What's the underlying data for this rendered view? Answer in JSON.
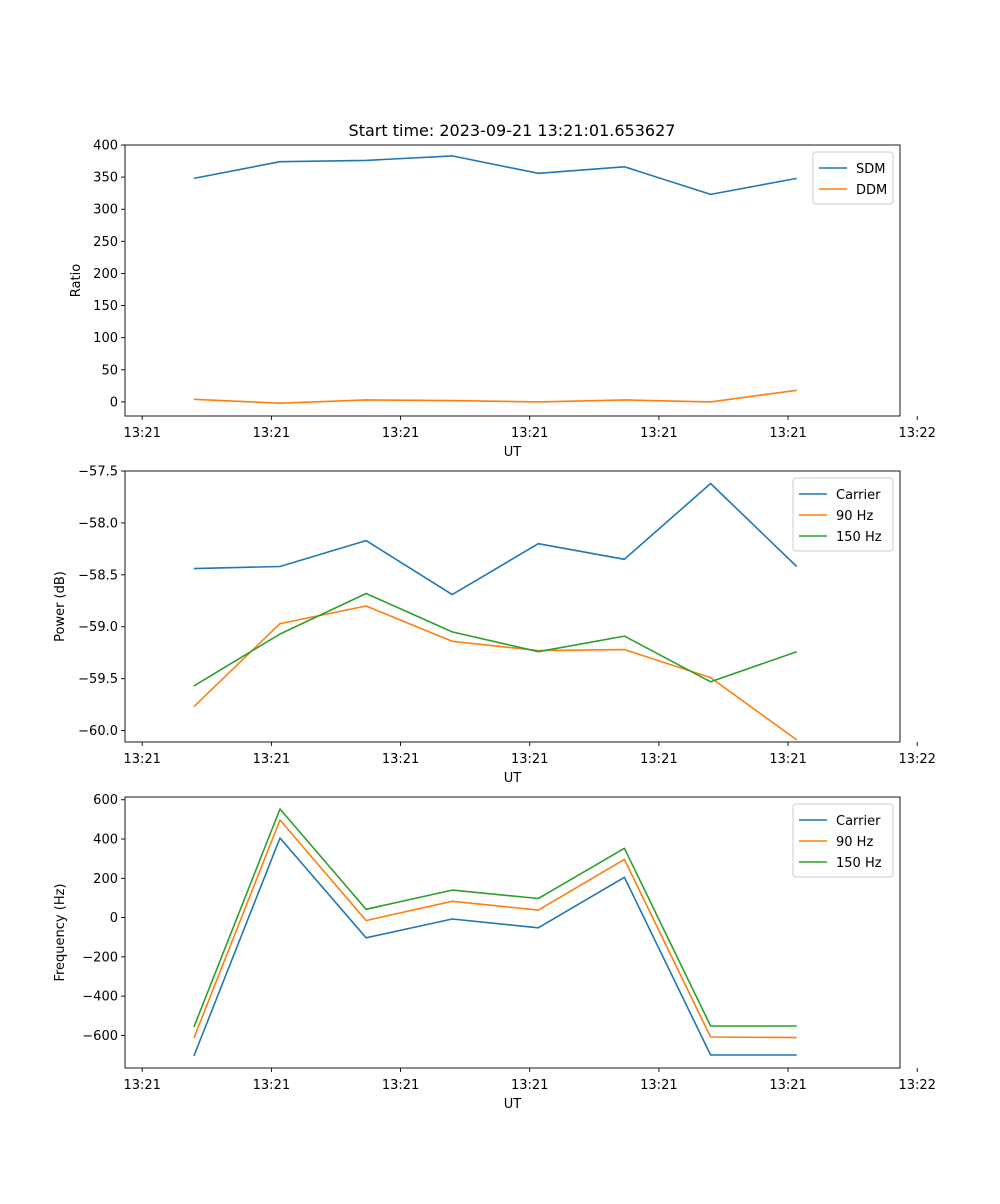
{
  "figure_title": "Start time: 2023-09-21 13:21:01.653627",
  "colors": {
    "c0": "#1f77b4",
    "c1": "#ff7f0e",
    "c2": "#2ca02c"
  },
  "chart_data": [
    {
      "type": "line",
      "title": "Start time: 2023-09-21 13:21:01.653627",
      "xlabel": "UT",
      "ylabel": "Ratio",
      "x": [
        1,
        2,
        3,
        4,
        5,
        6,
        7,
        8
      ],
      "xlim": [
        0.2,
        9.2
      ],
      "xticks": [
        0.4,
        1.9,
        3.4,
        4.9,
        6.4,
        7.9,
        9.4
      ],
      "xtick_labels": [
        "13:21",
        "13:21",
        "13:21",
        "13:21",
        "13:21",
        "13:21",
        "13:22"
      ],
      "ylim": [
        -22,
        400
      ],
      "yticks": [
        0,
        50,
        100,
        150,
        200,
        250,
        300,
        350,
        400
      ],
      "ytick_labels": [
        "0",
        "50",
        "100",
        "150",
        "200",
        "250",
        "300",
        "350",
        "400"
      ],
      "legend_position": "top-right",
      "series": [
        {
          "name": "SDM",
          "color": "#1f77b4",
          "values": [
            348,
            374,
            376,
            383,
            356,
            366,
            323,
            348
          ]
        },
        {
          "name": "DDM",
          "color": "#ff7f0e",
          "values": [
            4,
            -2,
            3,
            2,
            0,
            3,
            0,
            18
          ]
        }
      ]
    },
    {
      "type": "line",
      "xlabel": "UT",
      "ylabel": "Power (dB)",
      "x": [
        1,
        2,
        3,
        4,
        5,
        6,
        7,
        8
      ],
      "xlim": [
        0.2,
        9.2
      ],
      "xticks": [
        0.4,
        1.9,
        3.4,
        4.9,
        6.4,
        7.9,
        9.4
      ],
      "xtick_labels": [
        "13:21",
        "13:21",
        "13:21",
        "13:21",
        "13:21",
        "13:21",
        "13:22"
      ],
      "ylim": [
        -60.11,
        -57.5
      ],
      "yticks": [
        -60.0,
        -59.5,
        -59.0,
        -58.5,
        -58.0,
        -57.5
      ],
      "ytick_labels": [
        "−60.0",
        "−59.5",
        "−59.0",
        "−58.5",
        "−58.0",
        "−57.5"
      ],
      "legend_position": "top-right",
      "series": [
        {
          "name": "Carrier",
          "color": "#1f77b4",
          "values": [
            -58.44,
            -58.42,
            -58.17,
            -58.69,
            -58.2,
            -58.35,
            -57.62,
            -58.42
          ]
        },
        {
          "name": "90 Hz",
          "color": "#ff7f0e",
          "values": [
            -59.77,
            -58.97,
            -58.8,
            -59.14,
            -59.23,
            -59.22,
            -59.49,
            -60.09
          ]
        },
        {
          "name": "150 Hz",
          "color": "#2ca02c",
          "values": [
            -59.57,
            -59.07,
            -58.68,
            -59.05,
            -59.24,
            -59.09,
            -59.53,
            -59.24
          ]
        }
      ]
    },
    {
      "type": "line",
      "xlabel": "UT",
      "ylabel": "Frequency (Hz)",
      "x": [
        1,
        2,
        3,
        4,
        5,
        6,
        7,
        8
      ],
      "xlim": [
        0.2,
        9.2
      ],
      "xticks": [
        0.4,
        1.9,
        3.4,
        4.9,
        6.4,
        7.9,
        9.4
      ],
      "xtick_labels": [
        "13:21",
        "13:21",
        "13:21",
        "13:21",
        "13:21",
        "13:21",
        "13:22"
      ],
      "ylim": [
        -766,
        614
      ],
      "yticks": [
        -600,
        -400,
        -200,
        0,
        200,
        400,
        600
      ],
      "ytick_labels": [
        "−600",
        "−400",
        "−200",
        "0",
        "200",
        "400",
        "600"
      ],
      "legend_position": "top-right",
      "series": [
        {
          "name": "Carrier",
          "color": "#1f77b4",
          "values": [
            -705,
            405,
            -103,
            -7,
            -52,
            205,
            -700,
            -700
          ]
        },
        {
          "name": "90 Hz",
          "color": "#ff7f0e",
          "values": [
            -613,
            497,
            -15,
            83,
            38,
            296,
            -608,
            -611
          ]
        },
        {
          "name": "150 Hz",
          "color": "#2ca02c",
          "values": [
            -557,
            553,
            42,
            140,
            97,
            353,
            -552,
            -552
          ]
        }
      ]
    }
  ]
}
